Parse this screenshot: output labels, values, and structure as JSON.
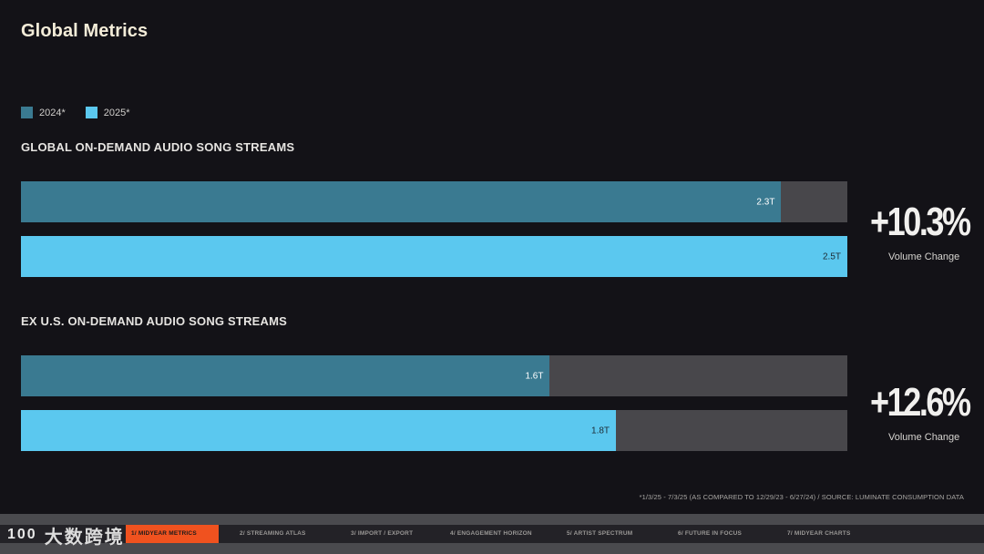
{
  "page": {
    "title": "Global Metrics",
    "footnote": "*1/3/25 - 7/3/25 (AS COMPARED TO 12/29/23 - 6/27/24)  /  SOURCE: LUMINATE CONSUMPTION DATA"
  },
  "legend": [
    {
      "label": "2024*",
      "color": "#3a7a91"
    },
    {
      "label": "2025*",
      "color": "#5bc8ef"
    }
  ],
  "chart_data": [
    {
      "type": "bar",
      "title": "GLOBAL ON-DEMAND AUDIO SONG STREAMS",
      "categories": [
        "2024*",
        "2025*"
      ],
      "values": [
        2.3,
        2.5
      ],
      "value_labels": [
        "2.3T",
        "2.5T"
      ],
      "unit": "T",
      "xlim": [
        0,
        2.5
      ],
      "orientation": "horizontal",
      "change": {
        "value": "+10.3%",
        "label": "Volume Change"
      }
    },
    {
      "type": "bar",
      "title": "EX U.S. ON-DEMAND AUDIO SONG STREAMS",
      "categories": [
        "2024*",
        "2025*"
      ],
      "values": [
        1.6,
        1.8
      ],
      "value_labels": [
        "1.6T",
        "1.8T"
      ],
      "unit": "T",
      "xlim": [
        0,
        2.5
      ],
      "orientation": "horizontal",
      "change": {
        "value": "+12.6%",
        "label": "Volume Change"
      }
    }
  ],
  "nav": {
    "logo_text": "大数跨境",
    "logo_mark": "100",
    "items": [
      {
        "label": "1/ MIDYEAR METRICS",
        "active": true
      },
      {
        "label": "2/ STREAMING ATLAS",
        "active": false
      },
      {
        "label": "3/ IMPORT / EXPORT",
        "active": false
      },
      {
        "label": "4/ ENGAGEMENT HORIZON",
        "active": false
      },
      {
        "label": "5/ ARTIST SPECTRUM",
        "active": false
      },
      {
        "label": "6/ FUTURE IN FOCUS",
        "active": false
      },
      {
        "label": "7/ MIDYEAR CHARTS",
        "active": false
      }
    ]
  }
}
